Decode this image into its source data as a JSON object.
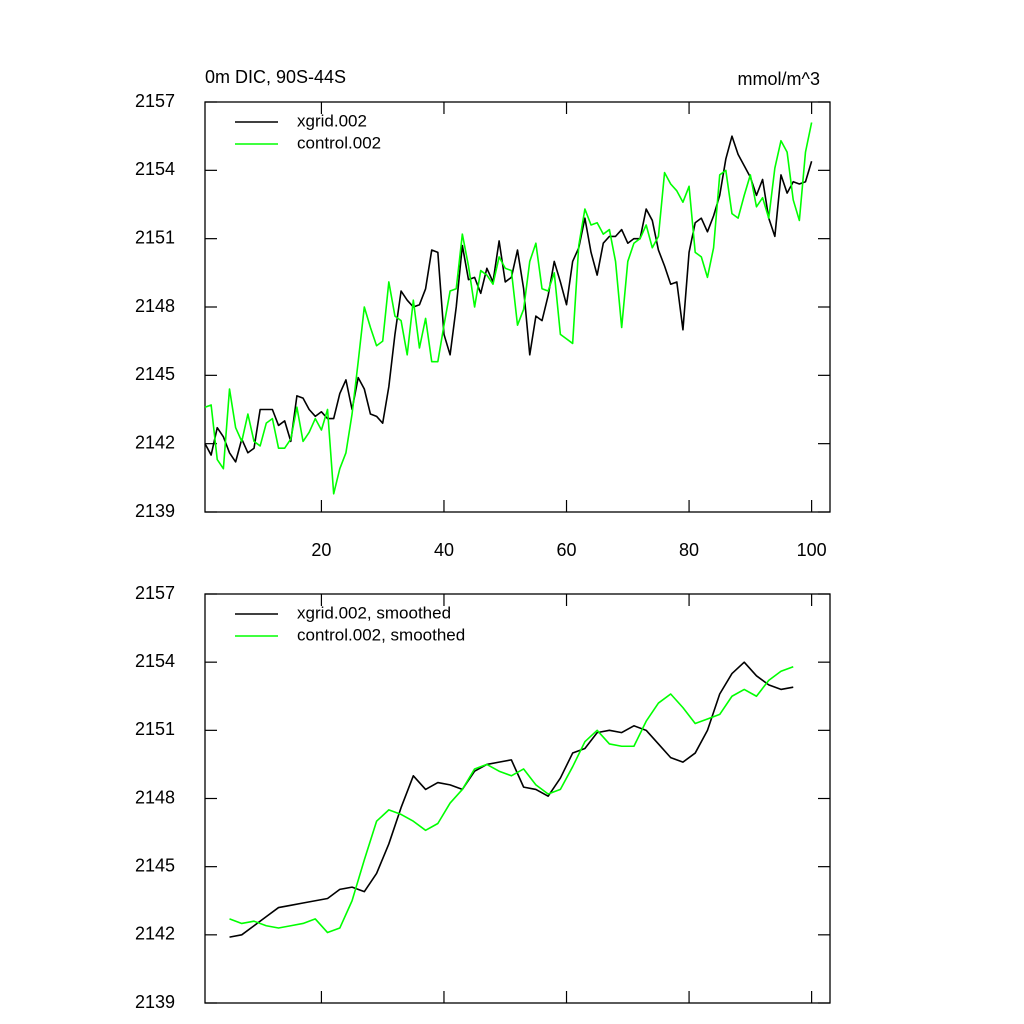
{
  "chart_data": [
    {
      "type": "line",
      "title": "0m DIC, 90S-44S",
      "right_title": "mmol/m^3",
      "x": [
        1,
        2,
        3,
        4,
        5,
        6,
        7,
        8,
        9,
        10,
        11,
        12,
        13,
        14,
        15,
        16,
        17,
        18,
        19,
        20,
        21,
        22,
        23,
        24,
        25,
        26,
        27,
        28,
        29,
        30,
        31,
        32,
        33,
        34,
        35,
        36,
        37,
        38,
        39,
        40,
        41,
        42,
        43,
        44,
        45,
        46,
        47,
        48,
        49,
        50,
        51,
        52,
        53,
        54,
        55,
        56,
        57,
        58,
        59,
        60,
        61,
        62,
        63,
        64,
        65,
        66,
        67,
        68,
        69,
        70,
        71,
        72,
        73,
        74,
        75,
        76,
        77,
        78,
        79,
        80,
        81,
        82,
        83,
        84,
        85,
        86,
        87,
        88,
        89,
        90,
        91,
        92,
        93,
        94,
        95,
        96,
        97,
        98,
        99,
        100
      ],
      "series": [
        {
          "name": "xgrid.002",
          "color": "#000000",
          "values": [
            2142.0,
            2141.5,
            2142.7,
            2142.3,
            2141.6,
            2141.2,
            2142.2,
            2141.6,
            2141.8,
            2143.5,
            2143.5,
            2143.5,
            2142.8,
            2143.0,
            2142.1,
            2144.1,
            2144.0,
            2143.5,
            2143.2,
            2143.4,
            2143.1,
            2143.1,
            2144.2,
            2144.8,
            2143.5,
            2144.9,
            2144.4,
            2143.3,
            2143.2,
            2142.9,
            2144.5,
            2146.8,
            2148.7,
            2148.3,
            2148.0,
            2148.1,
            2148.8,
            2150.5,
            2150.4,
            2146.8,
            2145.9,
            2148.0,
            2150.7,
            2149.2,
            2149.3,
            2148.6,
            2149.7,
            2149.1,
            2150.9,
            2149.1,
            2149.3,
            2150.5,
            2148.8,
            2145.9,
            2147.6,
            2147.4,
            2148.5,
            2150.0,
            2149.1,
            2148.1,
            2150.0,
            2150.6,
            2151.9,
            2150.4,
            2149.4,
            2150.8,
            2151.1,
            2151.1,
            2151.4,
            2150.8,
            2151.0,
            2151.0,
            2152.3,
            2151.8,
            2150.5,
            2149.8,
            2149.0,
            2149.1,
            2147.0,
            2150.4,
            2151.7,
            2151.9,
            2151.3,
            2152.0,
            2152.9,
            2154.5,
            2155.5,
            2154.7,
            2154.2,
            2153.7,
            2152.9,
            2153.6,
            2151.9,
            2151.1,
            2153.8,
            2153.0,
            2153.5,
            2153.4,
            2153.5,
            2154.4
          ]
        },
        {
          "name": "control.002",
          "color": "#00ff00",
          "values": [
            2143.6,
            2143.7,
            2141.3,
            2140.9,
            2144.4,
            2142.7,
            2142.1,
            2143.3,
            2142.1,
            2141.9,
            2142.9,
            2143.1,
            2141.8,
            2141.8,
            2142.2,
            2143.6,
            2142.1,
            2142.5,
            2143.1,
            2142.6,
            2143.5,
            2139.8,
            2140.9,
            2141.6,
            2143.3,
            2145.6,
            2148.0,
            2147.1,
            2146.3,
            2146.5,
            2149.1,
            2147.6,
            2147.4,
            2145.9,
            2148.3,
            2146.2,
            2147.5,
            2145.6,
            2145.6,
            2147.2,
            2148.7,
            2148.8,
            2151.2,
            2149.8,
            2148.0,
            2149.6,
            2149.4,
            2149.0,
            2150.2,
            2149.7,
            2149.6,
            2147.2,
            2147.9,
            2150.0,
            2150.8,
            2148.8,
            2148.7,
            2149.5,
            2146.8,
            2146.6,
            2146.4,
            2150.7,
            2152.3,
            2151.6,
            2151.7,
            2151.2,
            2151.4,
            2150.0,
            2147.1,
            2150.0,
            2150.8,
            2151.0,
            2151.6,
            2150.6,
            2151.1,
            2153.9,
            2153.4,
            2153.1,
            2152.6,
            2153.3,
            2150.4,
            2150.2,
            2149.3,
            2150.6,
            2153.8,
            2154.0,
            2152.1,
            2151.9,
            2152.9,
            2153.8,
            2152.4,
            2152.8,
            2151.9,
            2154.1,
            2155.3,
            2154.8,
            2152.7,
            2151.8,
            2154.8,
            2156.1
          ]
        }
      ],
      "xlim": [
        1,
        103
      ],
      "xticks": [
        20,
        40,
        60,
        80,
        100
      ],
      "xtick_labels": true,
      "ylim": [
        2139,
        2157
      ],
      "yticks": [
        2139,
        2142,
        2145,
        2148,
        2151,
        2154,
        2157
      ],
      "legend": "upper left",
      "grid": false
    },
    {
      "type": "line",
      "x": [
        5,
        7,
        9,
        11,
        13,
        15,
        17,
        19,
        21,
        23,
        25,
        27,
        29,
        31,
        33,
        35,
        37,
        39,
        41,
        43,
        45,
        47,
        49,
        51,
        53,
        55,
        57,
        59,
        61,
        63,
        65,
        67,
        69,
        71,
        73,
        75,
        77,
        79,
        81,
        83,
        85,
        87,
        89,
        91,
        93,
        95,
        97
      ],
      "series": [
        {
          "name": "xgrid.002, smoothed",
          "color": "#000000",
          "values": [
            2141.9,
            2142.0,
            2142.4,
            2142.8,
            2143.2,
            2143.3,
            2143.4,
            2143.5,
            2143.6,
            2144.0,
            2144.1,
            2143.9,
            2144.7,
            2146.0,
            2147.6,
            2149.0,
            2148.4,
            2148.7,
            2148.6,
            2148.4,
            2149.2,
            2149.5,
            2149.6,
            2149.7,
            2148.5,
            2148.4,
            2148.1,
            2148.9,
            2150.0,
            2150.2,
            2150.9,
            2151.0,
            2150.9,
            2151.2,
            2151.0,
            2150.4,
            2149.8,
            2149.6,
            2150.0,
            2151.0,
            2152.6,
            2153.5,
            2154.0,
            2153.4,
            2153.0,
            2152.8,
            2152.9
          ]
        },
        {
          "name": "control.002, smoothed",
          "color": "#00ff00",
          "values": [
            2142.7,
            2142.5,
            2142.6,
            2142.4,
            2142.3,
            2142.4,
            2142.5,
            2142.7,
            2142.1,
            2142.3,
            2143.5,
            2145.3,
            2147.0,
            2147.5,
            2147.3,
            2147.0,
            2146.6,
            2146.9,
            2147.8,
            2148.4,
            2149.3,
            2149.5,
            2149.2,
            2149.0,
            2149.3,
            2148.6,
            2148.2,
            2148.4,
            2149.4,
            2150.5,
            2151.0,
            2150.4,
            2150.3,
            2150.3,
            2151.4,
            2152.2,
            2152.6,
            2152.0,
            2151.3,
            2151.5,
            2151.7,
            2152.5,
            2152.8,
            2152.5,
            2153.2,
            2153.6,
            2153.8
          ]
        }
      ],
      "xlim": [
        1,
        103
      ],
      "xticks": [
        20,
        40,
        60,
        80,
        100
      ],
      "xtick_labels": false,
      "ylim": [
        2139,
        2157
      ],
      "yticks": [
        2139,
        2142,
        2145,
        2148,
        2151,
        2154,
        2157
      ],
      "legend": "upper left",
      "grid": false
    }
  ]
}
